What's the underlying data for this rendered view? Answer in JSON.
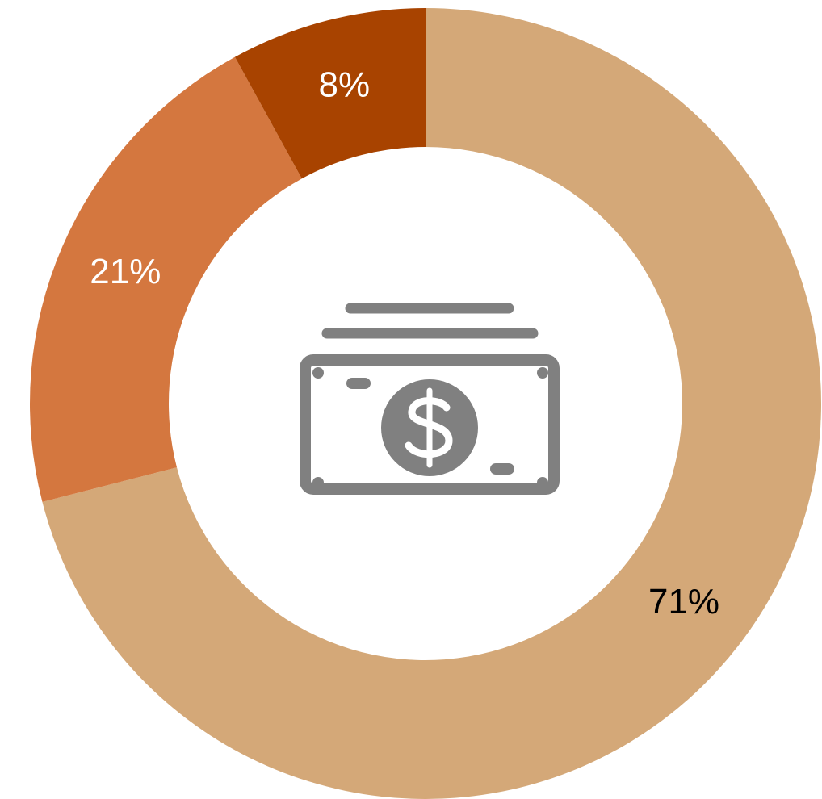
{
  "chart_data": {
    "type": "donut",
    "values": [
      71,
      21,
      8
    ],
    "value_labels": [
      "71%",
      "21%",
      "8%"
    ],
    "colors": [
      "#d4a878",
      "#d4773f",
      "#a84300"
    ],
    "label_colors": [
      "#000000",
      "#ffffff",
      "#ffffff"
    ]
  }
}
